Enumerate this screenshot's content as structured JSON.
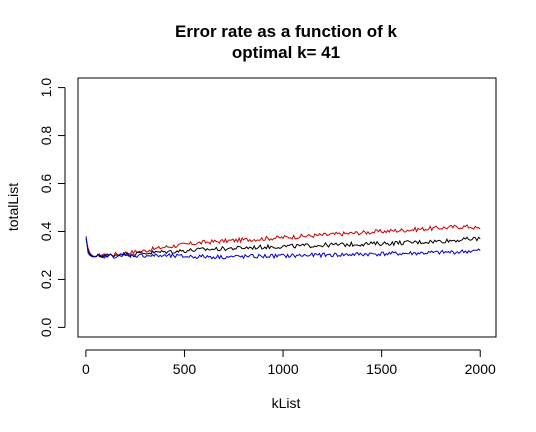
{
  "chart_data": {
    "type": "line",
    "title": "Error rate as a function of k",
    "subtitle": "optimal k= 41",
    "xlabel": "kList",
    "ylabel": "totalList",
    "xlim": [
      -40,
      2080
    ],
    "ylim": [
      -0.04,
      1.04
    ],
    "x_ticks": [
      0,
      500,
      1000,
      1500,
      2000
    ],
    "x_tick_labels": [
      "0",
      "500",
      "1000",
      "1500",
      "2000"
    ],
    "y_ticks": [
      0.0,
      0.2,
      0.4,
      0.6,
      0.8,
      1.0
    ],
    "y_tick_labels": [
      "0.0",
      "0.2",
      "0.4",
      "0.6",
      "0.8",
      "1.0"
    ],
    "grid": false,
    "legend": "none",
    "series": [
      {
        "color": "#cc0000",
        "x": [
          1,
          11,
          21,
          31,
          41,
          61,
          100,
          150,
          200,
          250,
          300,
          400,
          500,
          600,
          700,
          800,
          900,
          1000,
          1100,
          1200,
          1300,
          1400,
          1500,
          1600,
          1700,
          1800,
          1900,
          1950,
          2000
        ],
        "y": [
          0.37,
          0.33,
          0.31,
          0.3,
          0.296,
          0.298,
          0.3,
          0.305,
          0.31,
          0.315,
          0.32,
          0.335,
          0.345,
          0.355,
          0.36,
          0.365,
          0.37,
          0.375,
          0.38,
          0.385,
          0.39,
          0.395,
          0.4,
          0.405,
          0.41,
          0.415,
          0.42,
          0.42,
          0.41
        ]
      },
      {
        "color": "#000000",
        "x": [
          1,
          11,
          21,
          31,
          41,
          61,
          100,
          150,
          200,
          250,
          300,
          400,
          500,
          600,
          700,
          800,
          900,
          1000,
          1100,
          1200,
          1300,
          1400,
          1500,
          1600,
          1700,
          1800,
          1900,
          1950,
          2000
        ],
        "y": [
          0.37,
          0.32,
          0.305,
          0.298,
          0.295,
          0.297,
          0.3,
          0.303,
          0.305,
          0.308,
          0.31,
          0.315,
          0.32,
          0.325,
          0.328,
          0.332,
          0.335,
          0.338,
          0.34,
          0.343,
          0.345,
          0.348,
          0.35,
          0.353,
          0.356,
          0.36,
          0.365,
          0.368,
          0.37
        ]
      },
      {
        "color": "#0000cc",
        "x": [
          1,
          11,
          21,
          31,
          41,
          61,
          100,
          150,
          200,
          250,
          300,
          400,
          500,
          600,
          700,
          800,
          900,
          1000,
          1100,
          1200,
          1300,
          1400,
          1500,
          1600,
          1700,
          1800,
          1900,
          1950,
          2000
        ],
        "y": [
          0.38,
          0.31,
          0.3,
          0.295,
          0.294,
          0.295,
          0.297,
          0.298,
          0.3,
          0.3,
          0.3,
          0.298,
          0.296,
          0.295,
          0.294,
          0.295,
          0.297,
          0.298,
          0.3,
          0.302,
          0.303,
          0.305,
          0.307,
          0.308,
          0.31,
          0.312,
          0.315,
          0.318,
          0.32
        ]
      }
    ]
  }
}
